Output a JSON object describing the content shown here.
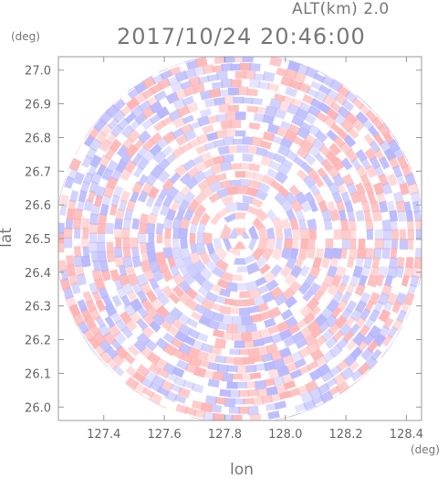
{
  "header": {
    "altitude": "ALT(km) 2.0",
    "timestamp": "2017/10/24 20:46:00"
  },
  "chart_data": {
    "type": "heatmap",
    "title": "2017/10/24 20:46:00",
    "subtitle": "ALT(km) 2.0",
    "xlabel": "lon",
    "ylabel": "lat",
    "xunit": "(deg)",
    "yunit": "(deg)",
    "xlim": [
      127.25,
      128.45
    ],
    "ylim": [
      25.96,
      27.04
    ],
    "xticks": [
      "127.4",
      "127.6",
      "127.8",
      "128.0",
      "128.2",
      "128.4"
    ],
    "xtick_values": [
      127.4,
      127.6,
      127.8,
      128.0,
      128.2,
      128.4
    ],
    "yticks": [
      "26.0",
      "26.1",
      "26.2",
      "26.3",
      "26.4",
      "26.5",
      "26.6",
      "26.7",
      "26.8",
      "26.9",
      "27.0"
    ],
    "ytick_values": [
      26.0,
      26.1,
      26.2,
      26.3,
      26.4,
      26.5,
      26.6,
      26.7,
      26.8,
      26.9,
      27.0
    ],
    "center": {
      "lon": 127.85,
      "lat": 26.5
    },
    "radius_deg": 0.55,
    "colors": {
      "positive": "#ffb0b0",
      "negative": "#b4b4ff",
      "neutral": "#ffffff",
      "axis": "#999999"
    },
    "grid": false
  }
}
